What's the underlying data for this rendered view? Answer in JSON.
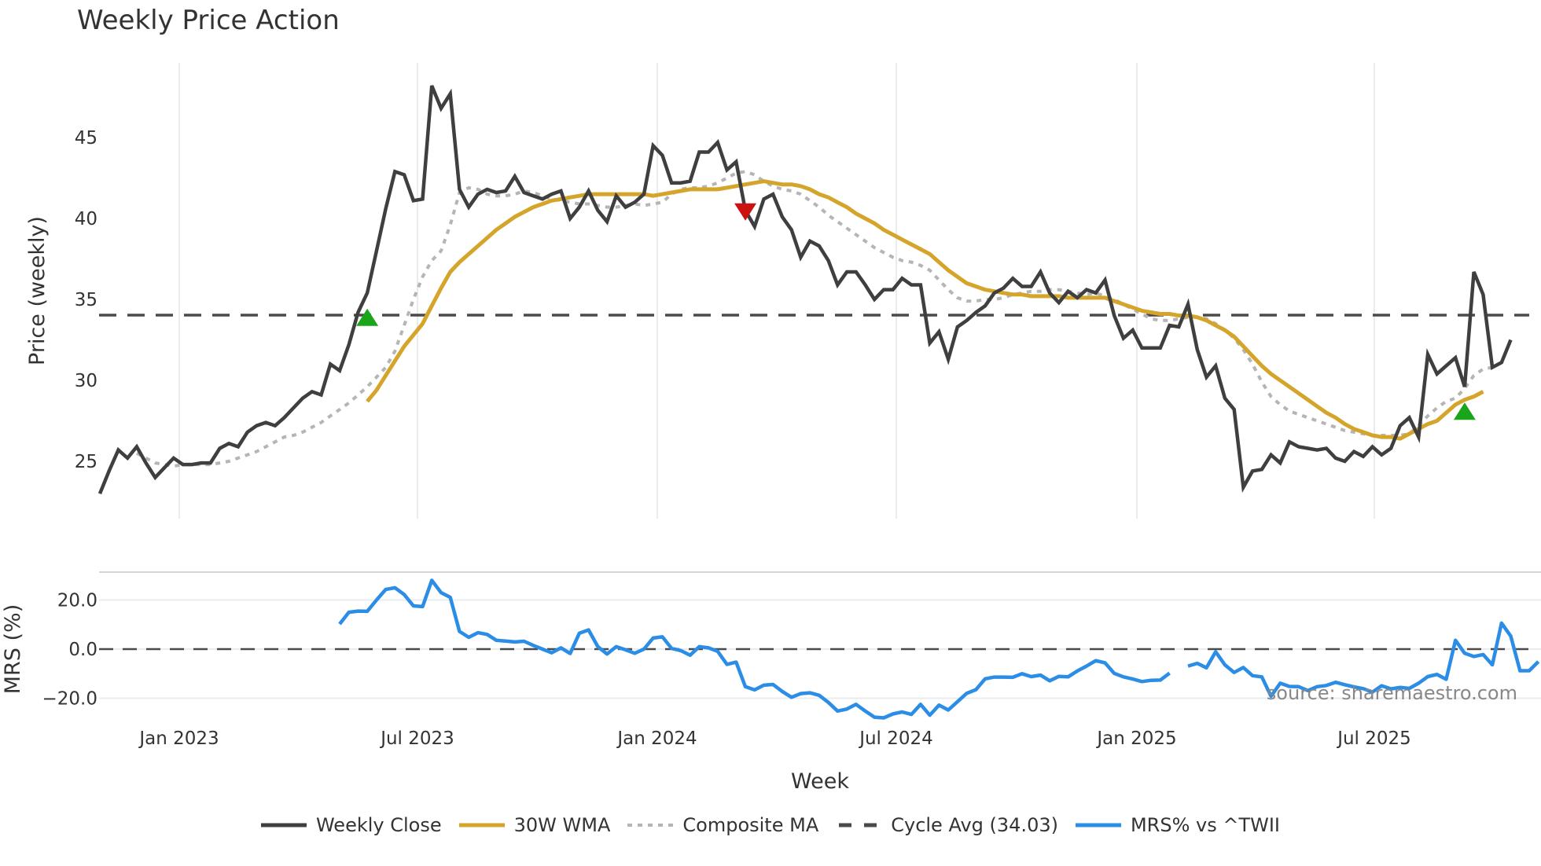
{
  "title": "Weekly Price Action",
  "watermark": "source: sharemaestro.com",
  "colors": {
    "close": "#3f3f3f",
    "wma": "#d4a52a",
    "composite": "#b5b5b5",
    "cycle": "#4a4a4a",
    "mrs": "#2b8de6",
    "buy_marker": "#1aa51a",
    "sell_marker": "#cc1111",
    "grid": "#e8ecf0"
  },
  "legend": [
    {
      "key": "close",
      "label": "Weekly Close",
      "style": "solid"
    },
    {
      "key": "wma",
      "label": "30W WMA",
      "style": "solid"
    },
    {
      "key": "composite",
      "label": "Composite MA",
      "style": "dotted"
    },
    {
      "key": "cycle",
      "label": "Cycle Avg (34.03)",
      "style": "dashed"
    },
    {
      "key": "mrs",
      "label": "MRS% vs ^TWII",
      "style": "solid"
    }
  ],
  "chart_data": [
    {
      "type": "line",
      "title": "Weekly Price Action",
      "xlabel": "Week",
      "ylabel": "Price (weekly)",
      "x_ticks": [
        "Jan 2023",
        "Jul 2023",
        "Jan 2024",
        "Jul 2024",
        "Jan 2025",
        "Jul 2025"
      ],
      "y_ticks": [
        25,
        30,
        35,
        40,
        45
      ],
      "ylim": [
        21.8,
        49.3
      ],
      "grid": true,
      "x_range_weeks": {
        "start": "~Nov 2022",
        "end": "~Oct 2025",
        "count": 156
      },
      "series": [
        {
          "name": "Weekly Close",
          "start_index": 0,
          "values": [
            23.0,
            24.4,
            25.7,
            25.2,
            25.9,
            24.9,
            24.0,
            24.6,
            25.2,
            24.8,
            24.8,
            24.9,
            24.9,
            25.8,
            26.1,
            25.9,
            26.8,
            27.2,
            27.4,
            27.2,
            27.7,
            28.3,
            28.9,
            29.3,
            29.1,
            31.0,
            30.6,
            32.2,
            34.2,
            35.4,
            38.0,
            40.6,
            42.9,
            42.7,
            41.1,
            41.2,
            48.2,
            46.8,
            47.7,
            41.8,
            40.7,
            41.5,
            41.8,
            41.6,
            41.7,
            42.6,
            41.6,
            41.4,
            41.2,
            41.5,
            41.7,
            40.0,
            40.7,
            41.7,
            40.5,
            39.8,
            41.4,
            40.7,
            41.0,
            41.5,
            44.5,
            43.9,
            42.2,
            42.2,
            42.3,
            44.1,
            44.1,
            44.7,
            43.0,
            43.5,
            40.5,
            39.5,
            41.2,
            41.5,
            40.1,
            39.3,
            37.6,
            38.6,
            38.3,
            37.4,
            35.9,
            36.7,
            36.7,
            35.9,
            35.0,
            35.6,
            35.6,
            36.3,
            35.9,
            35.9,
            32.3,
            33.0,
            31.3,
            33.3,
            33.7,
            34.2,
            34.6,
            35.4,
            35.7,
            36.3,
            35.8,
            35.8,
            36.7,
            35.4,
            34.8,
            35.5,
            35.1,
            35.6,
            35.4,
            36.2,
            34.0,
            32.6,
            33.1,
            32.0,
            32.0,
            32.0,
            33.4,
            33.3,
            34.7,
            31.9,
            30.2,
            30.9,
            28.9,
            28.2,
            23.4,
            24.4,
            24.5,
            25.4,
            24.9,
            26.2,
            25.9,
            25.8,
            25.7,
            25.8,
            25.2,
            25.0,
            25.6,
            25.3,
            25.9,
            25.4,
            25.8,
            27.2,
            27.7,
            26.5,
            31.6,
            30.4,
            30.9,
            31.4,
            29.6,
            36.7,
            35.3,
            30.8,
            31.1,
            32.5
          ]
        },
        {
          "name": "30W WMA",
          "start_index": 29,
          "values": [
            28.7,
            29.4,
            30.3,
            31.2,
            32.1,
            32.8,
            33.5,
            34.6,
            35.7,
            36.7,
            37.3,
            37.8,
            38.3,
            38.8,
            39.3,
            39.7,
            40.1,
            40.4,
            40.7,
            40.9,
            41.1,
            41.2,
            41.3,
            41.4,
            41.5,
            41.5,
            41.5,
            41.5,
            41.5,
            41.5,
            41.5,
            41.4,
            41.5,
            41.6,
            41.7,
            41.8,
            41.8,
            41.8,
            41.8,
            41.9,
            42.0,
            42.1,
            42.2,
            42.3,
            42.2,
            42.1,
            42.1,
            42.0,
            41.8,
            41.5,
            41.3,
            41.0,
            40.7,
            40.3,
            40.0,
            39.7,
            39.3,
            39.0,
            38.7,
            38.4,
            38.1,
            37.8,
            37.3,
            36.8,
            36.4,
            36.0,
            35.8,
            35.6,
            35.5,
            35.4,
            35.3,
            35.3,
            35.2,
            35.2,
            35.2,
            35.2,
            35.1,
            35.1,
            35.1,
            35.1,
            35.1,
            34.9,
            34.7,
            34.5,
            34.3,
            34.2,
            34.1,
            34.1,
            34.0,
            34.0,
            33.9,
            33.7,
            33.4,
            33.1,
            32.7,
            32.1,
            31.5,
            30.9,
            30.4,
            30.0,
            29.6,
            29.2,
            28.8,
            28.4,
            28.0,
            27.7,
            27.3,
            27.0,
            26.8,
            26.6,
            26.5,
            26.5,
            26.4,
            26.7,
            27.0,
            27.3,
            27.5,
            28.0,
            28.5,
            28.8,
            29.0,
            29.3
          ]
        },
        {
          "name": "Composite MA",
          "start_index": 4,
          "values": [
            25.5,
            25.2,
            24.9,
            24.8,
            24.7,
            24.8,
            24.8,
            24.8,
            24.8,
            24.9,
            25.0,
            25.2,
            25.4,
            25.6,
            25.9,
            26.2,
            26.5,
            26.6,
            26.8,
            27.1,
            27.4,
            27.8,
            28.2,
            28.6,
            29.1,
            29.6,
            30.2,
            30.8,
            31.8,
            33.4,
            35.0,
            36.4,
            37.4,
            38.0,
            39.6,
            41.6,
            41.9,
            41.8,
            41.5,
            41.4,
            41.4,
            41.5,
            41.7,
            41.6,
            41.4,
            41.2,
            41.1,
            41.0,
            40.9,
            40.9,
            40.8,
            40.7,
            40.7,
            40.8,
            40.9,
            40.8,
            40.9,
            41.0,
            41.5,
            41.8,
            41.9,
            41.9,
            42.0,
            42.2,
            42.5,
            42.8,
            42.9,
            42.7,
            42.3,
            42.0,
            41.8,
            41.7,
            41.5,
            41.1,
            40.7,
            40.2,
            39.8,
            39.4,
            39.0,
            38.6,
            38.2,
            37.9,
            37.6,
            37.4,
            37.3,
            37.1,
            36.8,
            36.2,
            35.6,
            35.1,
            34.9,
            34.9,
            35.0,
            35.0,
            35.1,
            35.3,
            35.4,
            35.5,
            35.5,
            35.6,
            35.6,
            35.5,
            35.4,
            35.3,
            35.4,
            35.2,
            35.0,
            34.7,
            34.4,
            34.1,
            33.8,
            33.7,
            33.7,
            33.8,
            33.9,
            33.9,
            33.8,
            33.5,
            33.1,
            32.6,
            31.9,
            31.0,
            29.9,
            29.0,
            28.5,
            28.1,
            27.9,
            27.7,
            27.5,
            27.3,
            27.1,
            26.9,
            26.8,
            26.7,
            26.6,
            26.6,
            26.6,
            26.6,
            26.7,
            27.2,
            27.8,
            28.3,
            28.7,
            28.9,
            29.5,
            30.3,
            30.7,
            30.8
          ]
        },
        {
          "name": "Cycle Avg (34.03)",
          "constant": 34.03
        }
      ],
      "markers": [
        {
          "type": "buy",
          "shape": "triangle-up",
          "index": 29,
          "value": 33.8
        },
        {
          "type": "sell",
          "shape": "triangle-down",
          "index": 70,
          "value": 40.5
        },
        {
          "type": "buy",
          "shape": "triangle-up",
          "index": 148,
          "value": 28.0
        }
      ]
    },
    {
      "type": "line",
      "title": "",
      "xlabel": "Week",
      "ylabel": "MRS (%)",
      "y_ticks": [
        "20.0",
        "0.0",
        "−20.0"
      ],
      "ylim": [
        -26,
        33
      ],
      "zero_line": true,
      "series": [
        {
          "name": "MRS% vs ^TWII",
          "start_index": 26,
          "gap_after_index": 114,
          "values": [
            10.2,
            15.0,
            15.5,
            15.4,
            20.0,
            24.3,
            25.0,
            22.2,
            17.6,
            17.3,
            28.0,
            23.0,
            21.1,
            7.2,
            4.8,
            6.7,
            6.0,
            3.6,
            3.3,
            2.9,
            3.2,
            1.5,
            0.0,
            -1.5,
            0.5,
            -1.8,
            6.5,
            7.8,
            1.0,
            -2.0,
            1.0,
            -0.3,
            -1.7,
            0.0,
            4.5,
            5.0,
            0.3,
            -0.6,
            -2.5,
            1.0,
            0.5,
            -0.9,
            -6.2,
            -5.3,
            -15.3,
            -16.6,
            -14.7,
            -14.4,
            -17.2,
            -19.6,
            -18.1,
            -17.8,
            -18.8,
            -21.7,
            -25.2,
            -24.4,
            -22.5,
            -25.2,
            -27.7,
            -28.0,
            -26.4,
            -25.6,
            -26.6,
            -22.5,
            -26.9,
            -22.8,
            -24.8,
            -21.4,
            -18.0,
            -16.5,
            -12.1,
            -11.4,
            -11.4,
            -11.5,
            -10.0,
            -11.2,
            -10.6,
            -12.9,
            -11.1,
            -11.3,
            -8.9,
            -6.9,
            -4.7,
            -5.6,
            -9.9,
            -11.3,
            -12.2,
            -13.2,
            -12.7,
            -12.6,
            -9.8
          ]
        },
        {
          "name": "MRS% vs ^TWII (cont.)",
          "start_index": 118,
          "values": [
            -6.9,
            -5.8,
            -7.6,
            -1.1,
            -6.4,
            -9.5,
            -7.5,
            -10.8,
            -11.3,
            -19.2,
            -13.9,
            -15.2,
            -15.3,
            -16.9,
            -15.3,
            -14.8,
            -13.5,
            -14.5,
            -15.4,
            -16.1,
            -17.5,
            -14.9,
            -16.2,
            -15.6,
            -16.0,
            -13.9,
            -11.2,
            -10.3,
            -12.3,
            3.6,
            -1.7,
            -3.0,
            -2.2,
            -6.4,
            10.6,
            5.3,
            -8.8,
            -8.8,
            -5.1
          ]
        }
      ]
    }
  ]
}
